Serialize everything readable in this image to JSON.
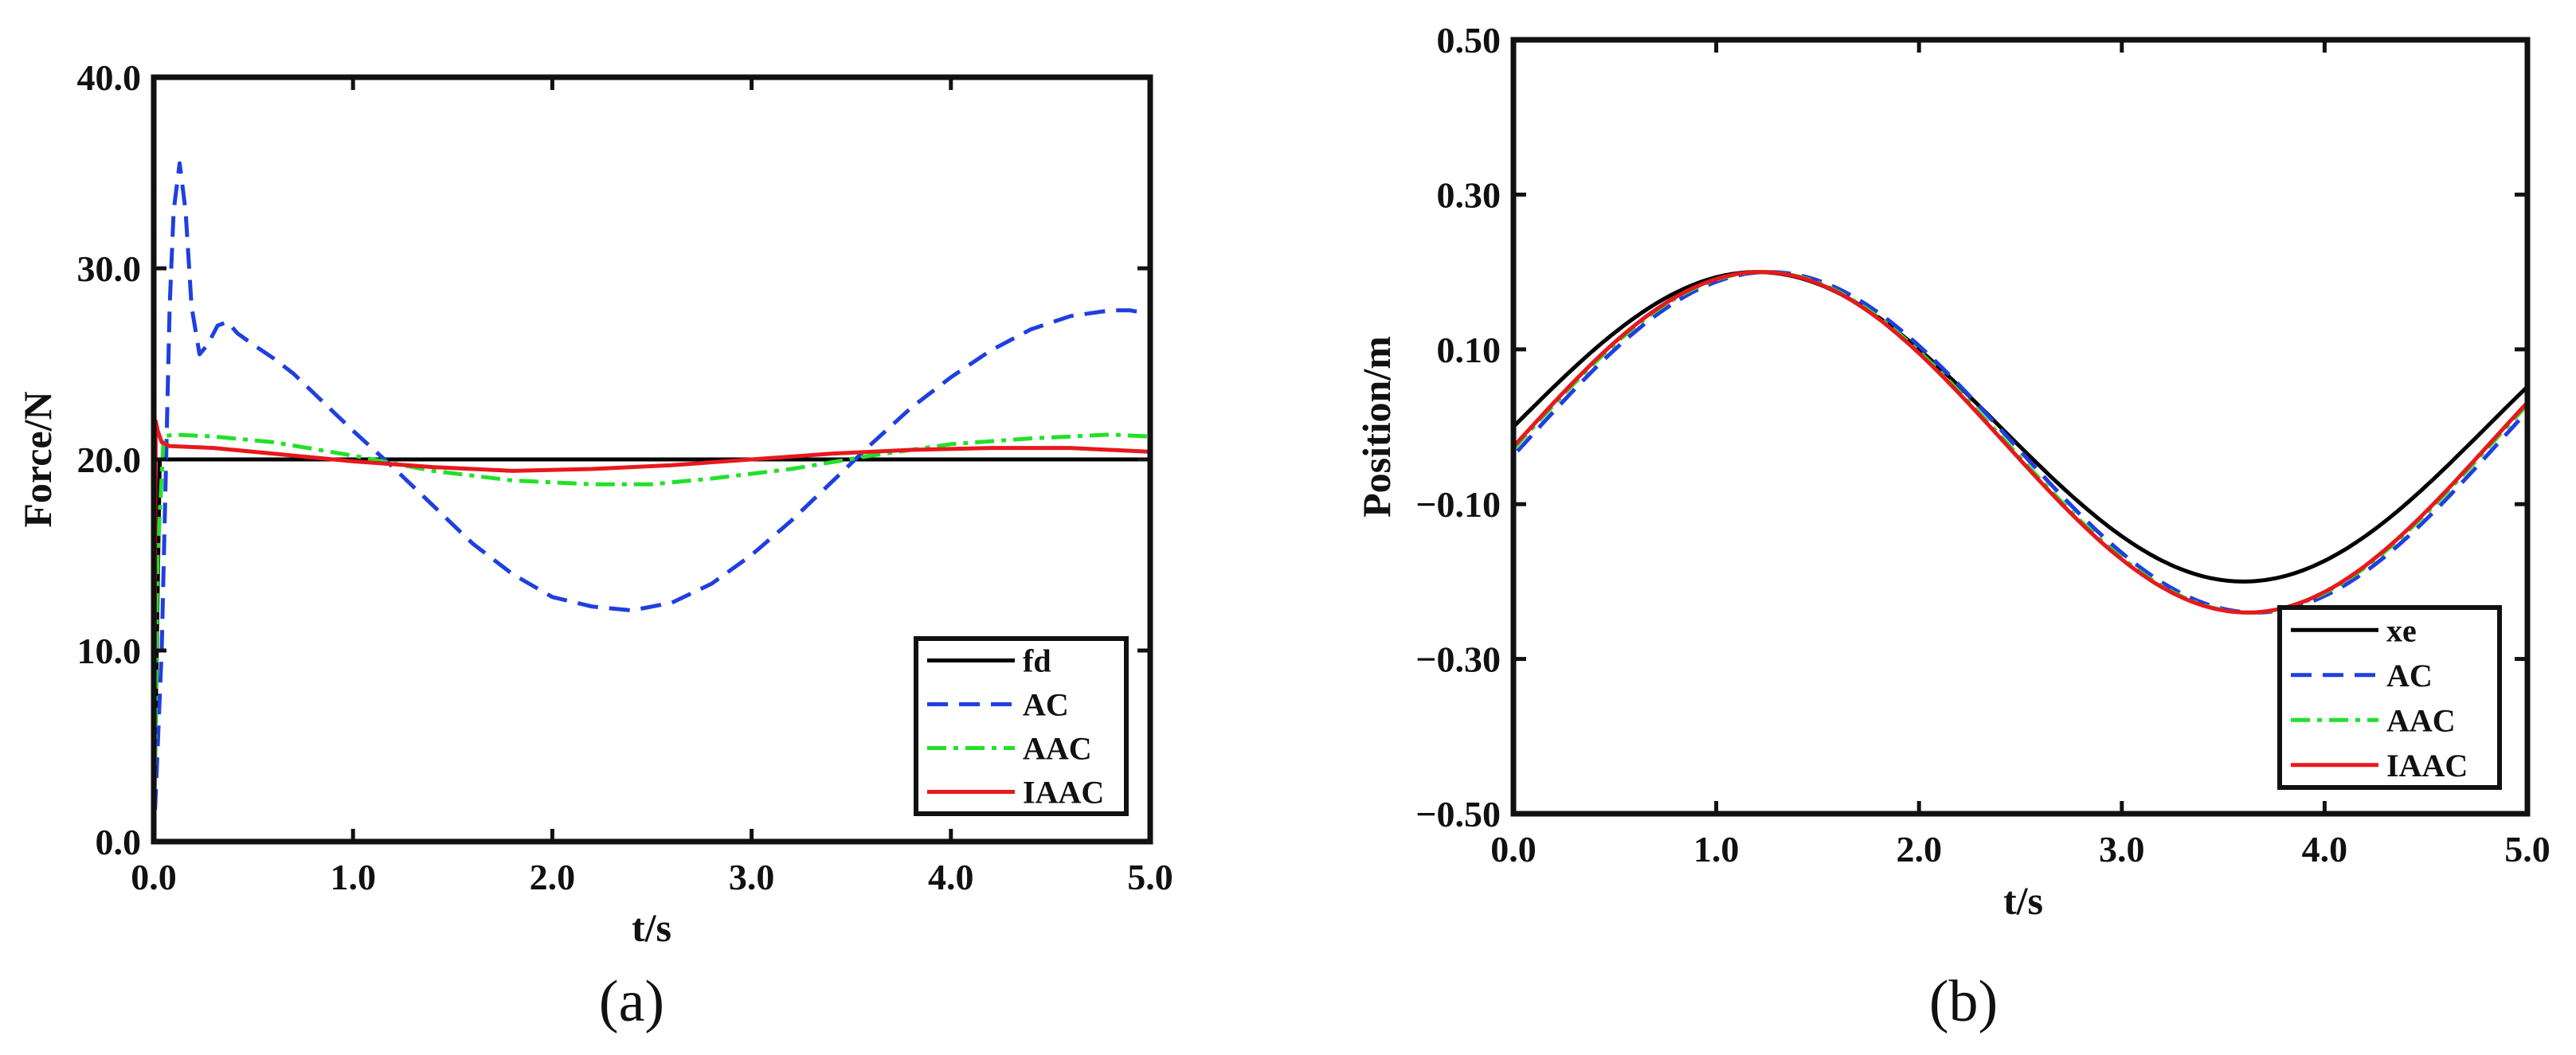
{
  "chart_data": [
    {
      "type": "line",
      "panel_label": "(a)",
      "xlabel": "t/s",
      "ylabel": "Force/N",
      "xlim": [
        0,
        5
      ],
      "ylim": [
        0,
        40
      ],
      "xticks": [
        0,
        1,
        2,
        3,
        4,
        5
      ],
      "xtick_labels": [
        "0.0",
        "1.0",
        "2.0",
        "3.0",
        "4.0",
        "5.0"
      ],
      "yticks": [
        0,
        10,
        20,
        30,
        40
      ],
      "ytick_labels": [
        "0.0",
        "10.0",
        "20.0",
        "30.0",
        "40.0"
      ],
      "legend_position": "bottom-right",
      "series": [
        {
          "name": "fd",
          "color": "#000000",
          "dash": "solid",
          "x": [
            0,
            0.03,
            5.0
          ],
          "y": [
            0,
            20,
            20
          ]
        },
        {
          "name": "AC",
          "color": "#1f3fe0",
          "dash": "dashed",
          "x": [
            0,
            0.02,
            0.04,
            0.06,
            0.08,
            0.1,
            0.13,
            0.16,
            0.19,
            0.23,
            0.27,
            0.32,
            0.37,
            0.42,
            0.5,
            0.6,
            0.7,
            0.8,
            0.9,
            1.0,
            1.2,
            1.4,
            1.6,
            1.8,
            2.0,
            2.2,
            2.4,
            2.6,
            2.8,
            3.0,
            3.2,
            3.4,
            3.6,
            3.8,
            4.0,
            4.2,
            4.4,
            4.6,
            4.8,
            4.9,
            5.0
          ],
          "y": [
            0,
            5,
            10,
            19,
            28,
            33,
            35.5,
            33,
            28,
            25.5,
            26,
            27,
            27.2,
            26.6,
            26,
            25.3,
            24.5,
            23.5,
            22.5,
            21.5,
            19.6,
            17.6,
            15.6,
            14,
            12.8,
            12.3,
            12.1,
            12.5,
            13.5,
            15,
            16.8,
            18.8,
            20.8,
            22.7,
            24.3,
            25.7,
            26.8,
            27.5,
            27.8,
            27.8,
            27.6
          ]
        },
        {
          "name": "AAC",
          "color": "#22e02a",
          "dash": "dashdot",
          "x": [
            0,
            0.02,
            0.05,
            0.1,
            0.3,
            0.6,
            1.0,
            1.4,
            1.8,
            2.2,
            2.5,
            2.8,
            3.2,
            3.6,
            4.0,
            4.4,
            4.8,
            5.0
          ],
          "y": [
            0,
            15,
            21.2,
            21.3,
            21.2,
            20.9,
            20.2,
            19.4,
            18.9,
            18.7,
            18.7,
            19.0,
            19.5,
            20.2,
            20.8,
            21.1,
            21.3,
            21.2
          ]
        },
        {
          "name": "IAAC",
          "color": "#e8181d",
          "dash": "solid",
          "x": [
            0,
            0.01,
            0.02,
            0.04,
            0.08,
            0.3,
            0.6,
            1.0,
            1.4,
            1.8,
            2.2,
            2.6,
            3.0,
            3.4,
            3.8,
            4.2,
            4.6,
            5.0
          ],
          "y": [
            0,
            22,
            21.5,
            20.9,
            20.7,
            20.6,
            20.3,
            19.9,
            19.6,
            19.4,
            19.5,
            19.7,
            20.0,
            20.3,
            20.5,
            20.6,
            20.6,
            20.4
          ]
        }
      ]
    },
    {
      "type": "line",
      "panel_label": "(b)",
      "xlabel": "t/s",
      "ylabel": "Position/m",
      "xlim": [
        0,
        5
      ],
      "ylim": [
        -0.5,
        0.5
      ],
      "xticks": [
        0,
        1,
        2,
        3,
        4,
        5
      ],
      "xtick_labels": [
        "0.0",
        "1.0",
        "2.0",
        "3.0",
        "4.0",
        "5.0"
      ],
      "yticks": [
        -0.5,
        -0.3,
        -0.1,
        0.1,
        0.3,
        0.5
      ],
      "ytick_labels": [
        "−0.50",
        "−0.30",
        "−0.10",
        "0.10",
        "0.30",
        "0.50"
      ],
      "legend_position": "bottom-right",
      "series": [
        {
          "name": "xe",
          "color": "#000000",
          "dash": "solid",
          "amplitude": 0.2,
          "period": 4.8,
          "phase": 0,
          "offset": 0,
          "t_start": 0
        },
        {
          "name": "AC",
          "color": "#1f3fe0",
          "dash": "dashed",
          "amplitude": 0.22,
          "period": 4.8,
          "phase": 0.06,
          "offset": -0.02,
          "t_start": 0.02
        },
        {
          "name": "AAC",
          "color": "#22e02a",
          "dash": "dashdot",
          "amplitude": 0.22,
          "period": 4.8,
          "phase": 0.03,
          "offset": -0.02,
          "t_start": 0.0
        },
        {
          "name": "IAAC",
          "color": "#e8181d",
          "dash": "solid",
          "amplitude": 0.22,
          "period": 4.8,
          "phase": 0.02,
          "offset": -0.02,
          "t_start": 0.0
        }
      ]
    }
  ]
}
